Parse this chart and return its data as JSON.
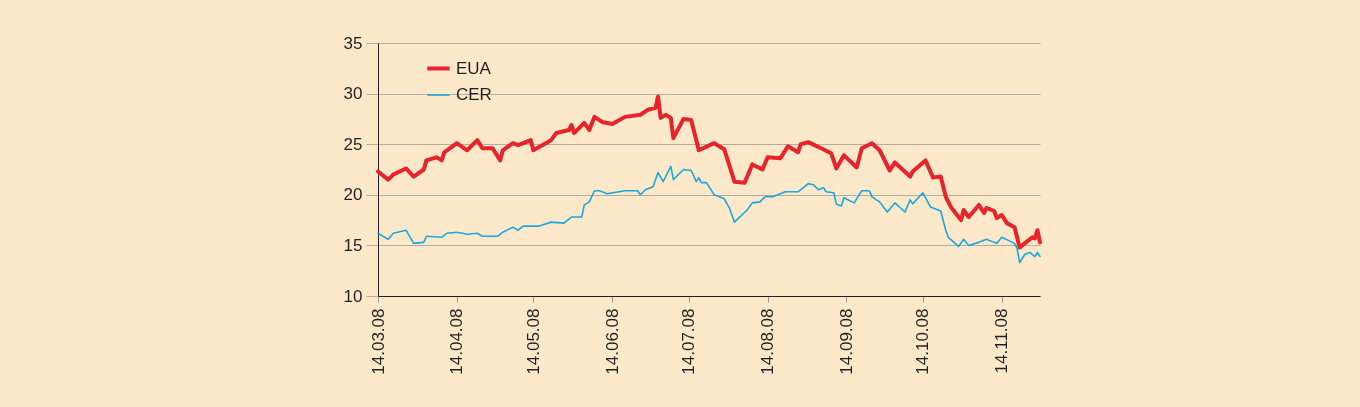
{
  "chart_data": {
    "type": "line",
    "xlim": [
      "2008-03-14",
      "2008-11-29"
    ],
    "xticks": [
      {
        "value": "2008-03-14",
        "label": "14.03.08"
      },
      {
        "value": "2008-04-14",
        "label": "14.04.08"
      },
      {
        "value": "2008-05-14",
        "label": "14.05.08"
      },
      {
        "value": "2008-06-14",
        "label": "14.06.08"
      },
      {
        "value": "2008-07-14",
        "label": "14.07.08"
      },
      {
        "value": "2008-08-14",
        "label": "14.08.08"
      },
      {
        "value": "2008-09-14",
        "label": "14.09.08"
      },
      {
        "value": "2008-10-14",
        "label": "14.10.08"
      },
      {
        "value": "2008-11-14",
        "label": "14.11.08"
      }
    ],
    "ylim": [
      10,
      35
    ],
    "yticks": [
      10,
      15,
      20,
      25,
      30,
      35
    ],
    "grid": "y",
    "legend": "top left",
    "marker": "none",
    "line_style": "solid",
    "series": [
      {
        "name": "EUA",
        "color": "#e8232a",
        "x": [
          "2008-03-14",
          "2008-03-18",
          "2008-03-20",
          "2008-03-25",
          "2008-03-28",
          "2008-04-01",
          "2008-04-02",
          "2008-04-06",
          "2008-04-08",
          "2008-04-09",
          "2008-04-14",
          "2008-04-18",
          "2008-04-22",
          "2008-04-24",
          "2008-04-28",
          "2008-05-01",
          "2008-05-02",
          "2008-05-06",
          "2008-05-08",
          "2008-05-13",
          "2008-05-14",
          "2008-05-21",
          "2008-05-23",
          "2008-05-28",
          "2008-05-29",
          "2008-05-30",
          "2008-06-03",
          "2008-06-05",
          "2008-06-07",
          "2008-06-10",
          "2008-06-14",
          "2008-06-19",
          "2008-06-25",
          "2008-06-28",
          "2008-07-01",
          "2008-07-02",
          "2008-07-03",
          "2008-07-05",
          "2008-07-07",
          "2008-07-08",
          "2008-07-12",
          "2008-07-15",
          "2008-07-18",
          "2008-07-24",
          "2008-07-28",
          "2008-08-01",
          "2008-08-05",
          "2008-08-08",
          "2008-08-12",
          "2008-08-14",
          "2008-08-19",
          "2008-08-22",
          "2008-08-26",
          "2008-08-27",
          "2008-08-30",
          "2008-09-04",
          "2008-09-08",
          "2008-09-10",
          "2008-09-13",
          "2008-09-18",
          "2008-09-20",
          "2008-09-24",
          "2008-09-27",
          "2008-10-01",
          "2008-10-03",
          "2008-10-09",
          "2008-10-10",
          "2008-10-15",
          "2008-10-18",
          "2008-10-21",
          "2008-10-23",
          "2008-10-25",
          "2008-10-29",
          "2008-10-30",
          "2008-11-01",
          "2008-11-05",
          "2008-11-07",
          "2008-11-08",
          "2008-11-11",
          "2008-11-12",
          "2008-11-14",
          "2008-11-16",
          "2008-11-19",
          "2008-11-21",
          "2008-11-26",
          "2008-11-27",
          "2008-11-28",
          "2008-11-29"
        ],
        "values": [
          22.3,
          21.5,
          22.0,
          22.6,
          21.8,
          22.5,
          23.4,
          23.7,
          23.4,
          24.2,
          25.1,
          24.4,
          25.4,
          24.6,
          24.6,
          23.4,
          24.4,
          25.1,
          24.9,
          25.4,
          24.4,
          25.4,
          26.1,
          26.4,
          26.9,
          26.1,
          27.1,
          26.4,
          27.7,
          27.2,
          27.0,
          27.7,
          27.9,
          28.4,
          28.6,
          29.7,
          27.6,
          27.9,
          27.6,
          25.6,
          27.5,
          27.4,
          24.4,
          25.1,
          24.5,
          21.3,
          21.2,
          23.0,
          22.5,
          23.7,
          23.6,
          24.8,
          24.2,
          25.0,
          25.2,
          24.6,
          24.1,
          22.6,
          23.9,
          22.7,
          24.6,
          25.1,
          24.4,
          22.4,
          23.2,
          21.8,
          22.3,
          23.4,
          21.7,
          21.8,
          19.8,
          18.8,
          17.5,
          18.5,
          17.8,
          19.0,
          18.2,
          18.7,
          18.4,
          17.7,
          18.0,
          17.2,
          16.8,
          14.8,
          15.8,
          15.7,
          16.5,
          15.3
        ]
      },
      {
        "name": "CER",
        "color": "#1aa8e0",
        "x": [
          "2008-03-14",
          "2008-03-18",
          "2008-03-20",
          "2008-03-25",
          "2008-03-28",
          "2008-04-01",
          "2008-04-02",
          "2008-04-08",
          "2008-04-10",
          "2008-04-14",
          "2008-04-18",
          "2008-04-22",
          "2008-04-24",
          "2008-04-30",
          "2008-05-02",
          "2008-05-06",
          "2008-05-08",
          "2008-05-10",
          "2008-05-16",
          "2008-05-21",
          "2008-05-26",
          "2008-05-29",
          "2008-06-02",
          "2008-06-03",
          "2008-06-05",
          "2008-06-07",
          "2008-06-09",
          "2008-06-12",
          "2008-06-19",
          "2008-06-24",
          "2008-06-25",
          "2008-06-27",
          "2008-06-30",
          "2008-07-02",
          "2008-07-04",
          "2008-07-07",
          "2008-07-08",
          "2008-07-12",
          "2008-07-15",
          "2008-07-17",
          "2008-07-18",
          "2008-07-19",
          "2008-07-21",
          "2008-07-24",
          "2008-07-28",
          "2008-07-30",
          "2008-08-01",
          "2008-08-06",
          "2008-08-08",
          "2008-08-11",
          "2008-08-13",
          "2008-08-16",
          "2008-08-21",
          "2008-08-26",
          "2008-08-30",
          "2008-09-01",
          "2008-09-03",
          "2008-09-05",
          "2008-09-06",
          "2008-09-09",
          "2008-09-10",
          "2008-09-12",
          "2008-09-13",
          "2008-09-17",
          "2008-09-20",
          "2008-09-23",
          "2008-09-24",
          "2008-09-27",
          "2008-09-30",
          "2008-10-03",
          "2008-10-07",
          "2008-10-09",
          "2008-10-10",
          "2008-10-14",
          "2008-10-17",
          "2008-10-21",
          "2008-10-23",
          "2008-10-24",
          "2008-10-28",
          "2008-10-30",
          "2008-11-01",
          "2008-11-05",
          "2008-11-08",
          "2008-11-12",
          "2008-11-14",
          "2008-11-19",
          "2008-11-20",
          "2008-11-21",
          "2008-11-23",
          "2008-11-25",
          "2008-11-27",
          "2008-11-28",
          "2008-11-29"
        ],
        "values": [
          16.2,
          15.6,
          16.2,
          16.5,
          15.2,
          15.3,
          15.9,
          15.8,
          16.2,
          16.3,
          16.1,
          16.2,
          15.9,
          15.9,
          16.3,
          16.8,
          16.5,
          16.9,
          16.9,
          17.3,
          17.2,
          17.8,
          17.8,
          19.0,
          19.3,
          20.4,
          20.4,
          20.1,
          20.4,
          20.4,
          20.0,
          20.5,
          20.8,
          22.2,
          21.3,
          22.8,
          21.5,
          22.5,
          22.4,
          21.3,
          21.7,
          21.2,
          21.2,
          20.0,
          19.6,
          18.7,
          17.3,
          18.5,
          19.2,
          19.3,
          19.8,
          19.8,
          20.3,
          20.3,
          21.1,
          21.0,
          20.5,
          20.7,
          20.3,
          20.2,
          19.1,
          18.9,
          19.7,
          19.2,
          20.4,
          20.4,
          19.8,
          19.3,
          18.3,
          19.2,
          18.3,
          19.5,
          19.1,
          20.2,
          18.8,
          18.4,
          16.5,
          15.8,
          14.9,
          15.6,
          15.0,
          15.3,
          15.6,
          15.2,
          15.8,
          15.2,
          14.7,
          13.3,
          14.1,
          14.3,
          13.9,
          14.3,
          13.9
        ]
      }
    ]
  }
}
